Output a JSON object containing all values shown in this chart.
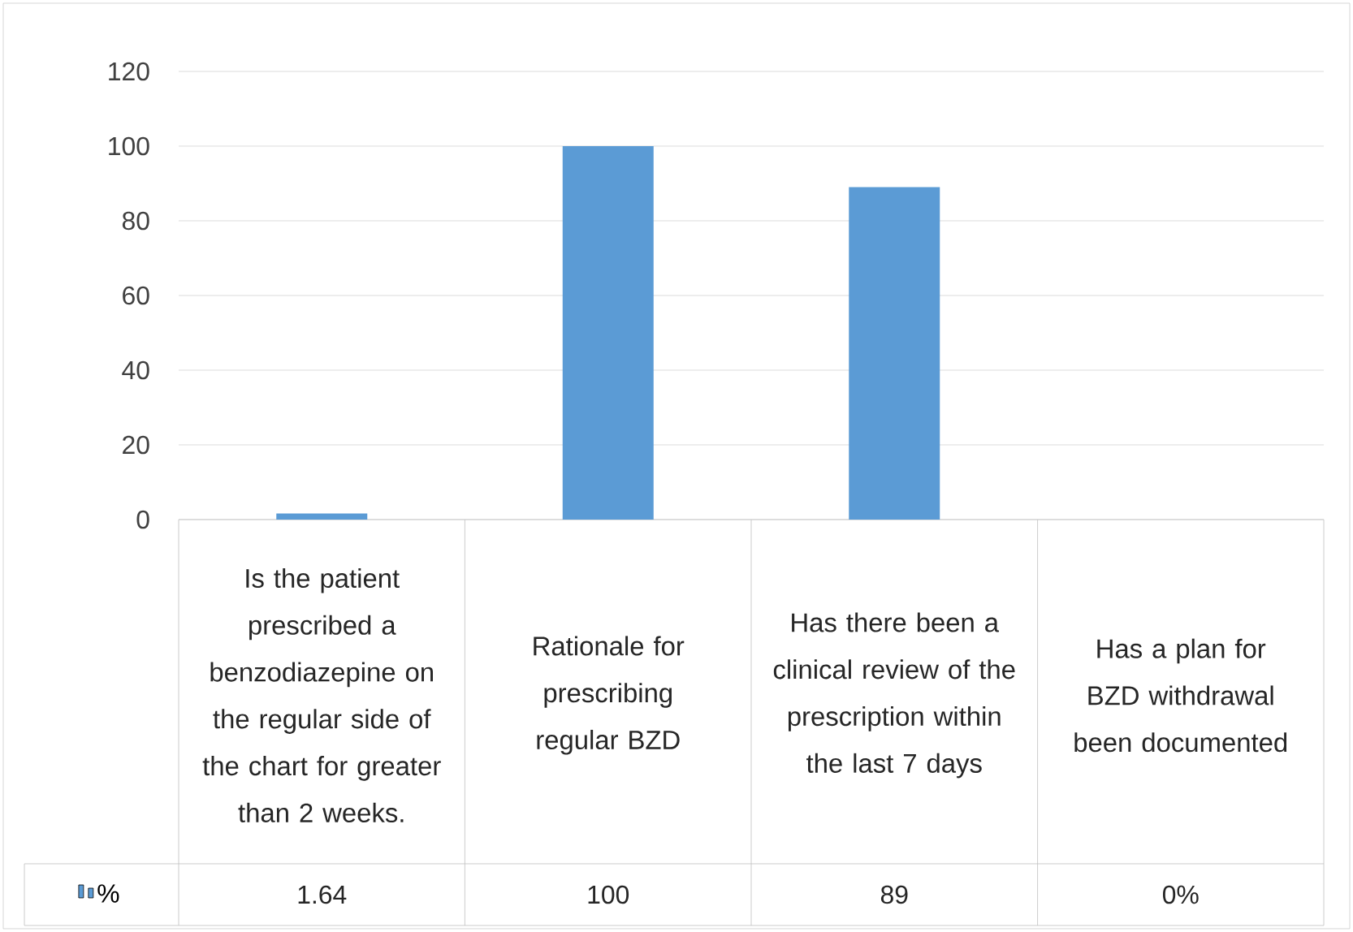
{
  "chart_data": {
    "type": "bar",
    "categories": [
      "Is the patient prescribed a benzodiazepine on the regular side of the chart for greater than 2 weeks.",
      "Rationale for prescribing regular BZD",
      "Has there been a clinical review of the prescription within the last 7 days",
      "Has a plan for BZD withdrawal been documented"
    ],
    "series": [
      {
        "name": "%",
        "color": "#5b9bd5",
        "values": [
          1.64,
          100,
          89,
          0
        ],
        "value_labels": [
          "1.64",
          "100",
          "89",
          "0%"
        ]
      }
    ],
    "ylim": [
      0,
      120
    ],
    "yticks": [
      0,
      20,
      40,
      60,
      80,
      100,
      120
    ],
    "grid": "y",
    "legend": "bottom left"
  }
}
